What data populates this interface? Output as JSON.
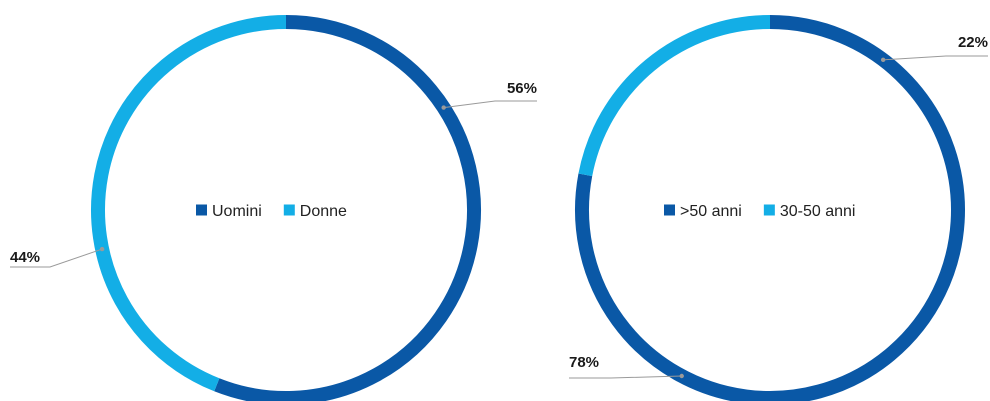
{
  "colors": {
    "dark_blue": "#0a58a6",
    "light_blue": "#13aee6",
    "label_text": "#1a1a1a",
    "leader_line": "#9a9a9a"
  },
  "chart_data": [
    {
      "type": "pie",
      "style": "donut",
      "legend_position": "center",
      "slices": [
        {
          "label": "Uomini",
          "value": 56,
          "display": "56%",
          "color": "#0a58a6"
        },
        {
          "label": "Donne",
          "value": 44,
          "display": "44%",
          "color": "#13aee6"
        }
      ]
    },
    {
      "type": "pie",
      "style": "donut",
      "legend_position": "center",
      "slices": [
        {
          "label": ">50 anni",
          "value": 78,
          "display": "78%",
          "color": "#0a58a6"
        },
        {
          "label": "30-50 anni",
          "value": 22,
          "display": "22%",
          "color": "#13aee6"
        }
      ]
    }
  ]
}
